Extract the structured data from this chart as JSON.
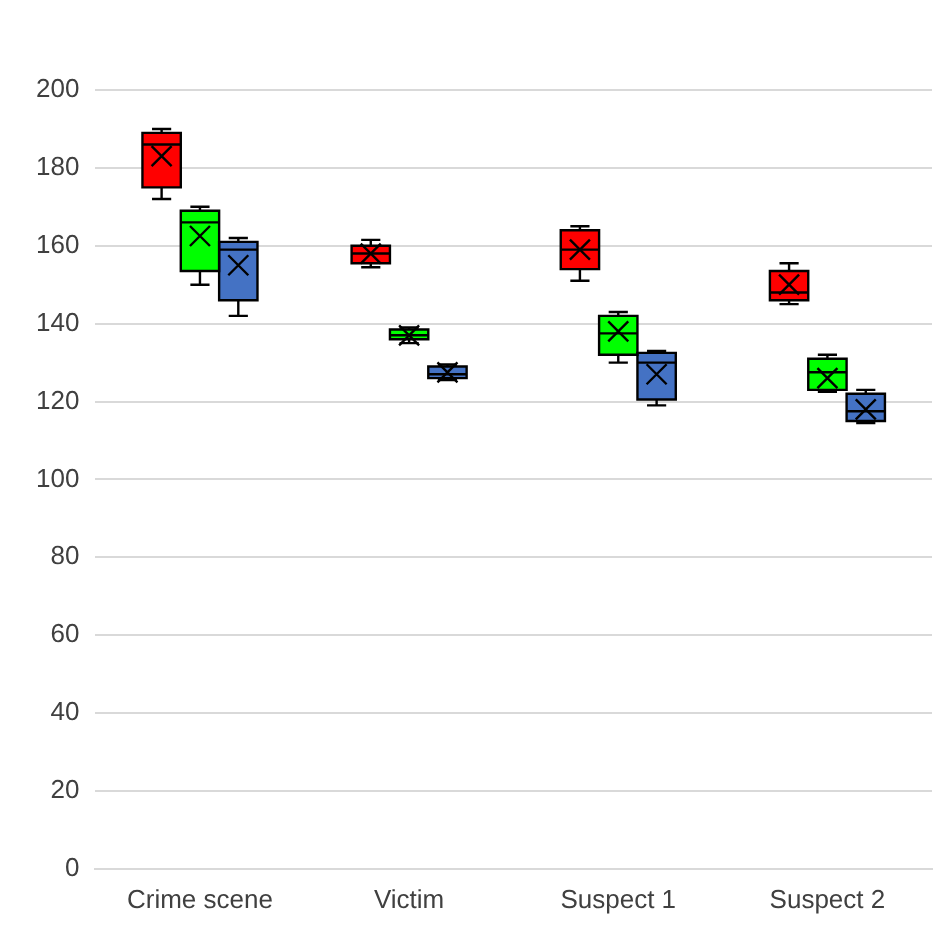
{
  "chart_data": {
    "type": "box",
    "categories": [
      "Crime scene",
      "Victim",
      "Suspect 1",
      "Suspect 2"
    ],
    "series": [
      {
        "color": "#ff0000",
        "boxes": [
          {
            "low": 172,
            "q1": 175,
            "median": 186,
            "q3": 189,
            "high": 190,
            "mean": 183
          },
          {
            "low": 154.5,
            "q1": 155.5,
            "median": 158,
            "q3": 160,
            "high": 161.5,
            "mean": 158
          },
          {
            "low": 151,
            "q1": 154,
            "median": 159,
            "q3": 164,
            "high": 165,
            "mean": 159
          },
          {
            "low": 145,
            "q1": 146,
            "median": 148,
            "q3": 153.5,
            "high": 155.5,
            "mean": 150
          }
        ]
      },
      {
        "color": "#00ff00",
        "boxes": [
          {
            "low": 150,
            "q1": 153.5,
            "median": 166,
            "q3": 169,
            "high": 170,
            "mean": 162.5
          },
          {
            "low": 135,
            "q1": 136,
            "median": 137,
            "q3": 138.5,
            "high": 139,
            "mean": 137
          },
          {
            "low": 130,
            "q1": 132,
            "median": 137.5,
            "q3": 142,
            "high": 143,
            "mean": 138
          },
          {
            "low": 122.5,
            "q1": 123,
            "median": 127.5,
            "q3": 131,
            "high": 132,
            "mean": 126
          }
        ]
      },
      {
        "color": "#4472c4",
        "boxes": [
          {
            "low": 142,
            "q1": 146,
            "median": 159,
            "q3": 161,
            "high": 162,
            "mean": 155
          },
          {
            "low": 125.5,
            "q1": 126,
            "median": 127,
            "q3": 129,
            "high": 129.5,
            "mean": 127.5
          },
          {
            "low": 119,
            "q1": 120.5,
            "median": 130,
            "q3": 132.5,
            "high": 133,
            "mean": 127
          },
          {
            "low": 114.5,
            "q1": 115,
            "median": 117.5,
            "q3": 122,
            "high": 123,
            "mean": 118
          }
        ]
      }
    ],
    "ylim": [
      0,
      200
    ],
    "yticks": [
      0,
      20,
      40,
      60,
      80,
      100,
      120,
      140,
      160,
      180,
      200
    ],
    "grid": "y",
    "legend": false
  }
}
